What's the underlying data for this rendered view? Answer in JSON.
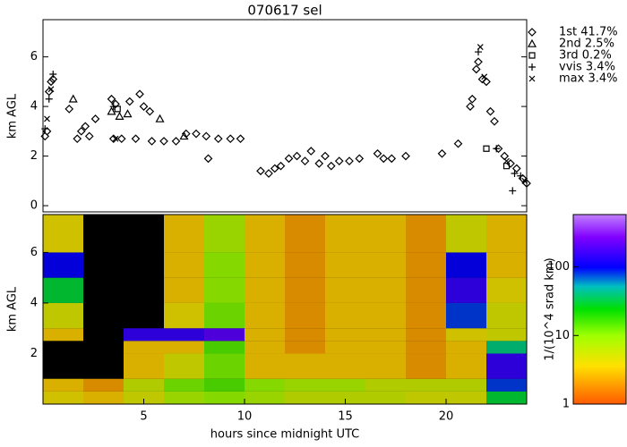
{
  "chart_data": [
    {
      "type": "scatter",
      "title": "070617 sel",
      "y_label": "km AGL",
      "xlim": [
        0,
        24
      ],
      "ylim": [
        -0.25,
        7.5
      ],
      "yticks": [
        0,
        2,
        4,
        6
      ],
      "series": [
        {
          "name": "1st 41.7%",
          "marker": "diamond",
          "color": "#000000",
          "x": [
            0.1,
            0.2,
            0.3,
            0.4,
            0.5,
            1.3,
            1.7,
            1.9,
            2.1,
            2.3,
            2.6,
            3.4,
            3.6,
            3.5,
            3.9,
            4.3,
            4.6,
            4.8,
            5.0,
            5.3,
            5.4,
            6.0,
            6.6,
            7.1,
            7.6,
            8.1,
            8.2,
            8.7,
            9.3,
            9.8,
            10.8,
            11.2,
            11.5,
            11.8,
            12.2,
            12.6,
            13.0,
            13.3,
            13.7,
            14.0,
            14.3,
            14.7,
            15.2,
            15.7,
            16.6,
            16.9,
            17.3,
            18.0,
            19.8,
            20.6,
            21.2,
            21.3,
            21.5,
            21.6,
            21.8,
            22.0,
            22.2,
            22.4,
            22.6,
            22.9,
            23.2,
            23.5,
            23.8,
            24.0
          ],
          "values": [
            2.8,
            3.0,
            4.6,
            5.0,
            5.1,
            3.9,
            2.7,
            3.0,
            3.2,
            2.8,
            3.5,
            4.3,
            4.1,
            2.7,
            2.7,
            4.2,
            2.7,
            4.5,
            4.0,
            3.8,
            2.6,
            2.6,
            2.6,
            2.9,
            2.9,
            2.8,
            1.9,
            2.7,
            2.7,
            2.7,
            1.4,
            1.3,
            1.5,
            1.6,
            1.9,
            2.0,
            1.8,
            2.2,
            1.7,
            2.0,
            1.6,
            1.8,
            1.8,
            1.9,
            2.1,
            1.9,
            1.9,
            2.0,
            2.1,
            2.5,
            4.0,
            4.3,
            5.5,
            5.8,
            5.1,
            5.0,
            3.8,
            3.4,
            2.3,
            2.0,
            1.7,
            1.5,
            1.1,
            0.9
          ]
        },
        {
          "name": "2nd  2.5%",
          "marker": "triangle",
          "color": "#000000",
          "x": [
            1.5,
            3.4,
            3.8,
            4.2,
            5.8,
            7.0
          ],
          "values": [
            4.3,
            3.8,
            3.6,
            3.7,
            3.5,
            2.8
          ]
        },
        {
          "name": "3rd  0.2%",
          "marker": "square",
          "color": "#000000",
          "x": [
            3.7,
            22.0,
            23.0
          ],
          "values": [
            3.9,
            2.3,
            1.6
          ]
        },
        {
          "name": "vvis  3.4%",
          "marker": "plus",
          "color": "#000000",
          "x": [
            0.1,
            0.3,
            0.5,
            3.5,
            21.6,
            22.5,
            23.4,
            23.3,
            23.7
          ],
          "values": [
            3.1,
            4.3,
            5.3,
            4.0,
            6.2,
            2.3,
            1.3,
            0.6,
            1.2
          ]
        },
        {
          "name": "max   3.4%",
          "marker": "cross",
          "color": "#000000",
          "x": [
            0.2,
            0.4,
            3.6,
            21.7,
            21.9,
            23.0,
            23.9
          ],
          "values": [
            3.5,
            4.7,
            2.7,
            6.4,
            5.2,
            1.8,
            1.0
          ]
        }
      ]
    },
    {
      "type": "heatmap",
      "x_label": "hours since midnight UTC",
      "y_label": "km AGL",
      "colorbar_label": "1/(10^4 srad km)",
      "xlim": [
        0,
        24
      ],
      "ylim": [
        0,
        7.5
      ],
      "xticks": [
        5,
        10,
        15,
        20
      ],
      "yticks": [
        2,
        4,
        6
      ],
      "clim": [
        1,
        580
      ],
      "cticks": [
        1,
        10,
        100
      ],
      "log_color": true,
      "x_edges": [
        0,
        2,
        4,
        6,
        8,
        10,
        12,
        14,
        16,
        18,
        20,
        22,
        24
      ],
      "y_edges": [
        0,
        0.5,
        1,
        2,
        2.5,
        3,
        4,
        5,
        6,
        7.5
      ],
      "z": [
        [
          4,
          3,
          5,
          8,
          10,
          8,
          6,
          6,
          6,
          5,
          5,
          30
        ],
        [
          3,
          2,
          6,
          12,
          15,
          10,
          8,
          8,
          6,
          6,
          6,
          80
        ],
        [
          null,
          null,
          3,
          5,
          12,
          3,
          3,
          3,
          3,
          2,
          3,
          150
        ],
        [
          null,
          null,
          3,
          3,
          15,
          3,
          2,
          3,
          3,
          2,
          3,
          40
        ],
        [
          3,
          null,
          150,
          150,
          200,
          3,
          2,
          3,
          3,
          2,
          4,
          5
        ],
        [
          5,
          null,
          null,
          4,
          12,
          3,
          2,
          3,
          3,
          2,
          80,
          5
        ],
        [
          30,
          null,
          null,
          3,
          10,
          3,
          2,
          3,
          3,
          2,
          150,
          4
        ],
        [
          100,
          null,
          null,
          3,
          10,
          3,
          2,
          3,
          3,
          2,
          100,
          3
        ],
        [
          4,
          null,
          null,
          3,
          8,
          3,
          2,
          3,
          3,
          2,
          5,
          3
        ]
      ]
    }
  ]
}
